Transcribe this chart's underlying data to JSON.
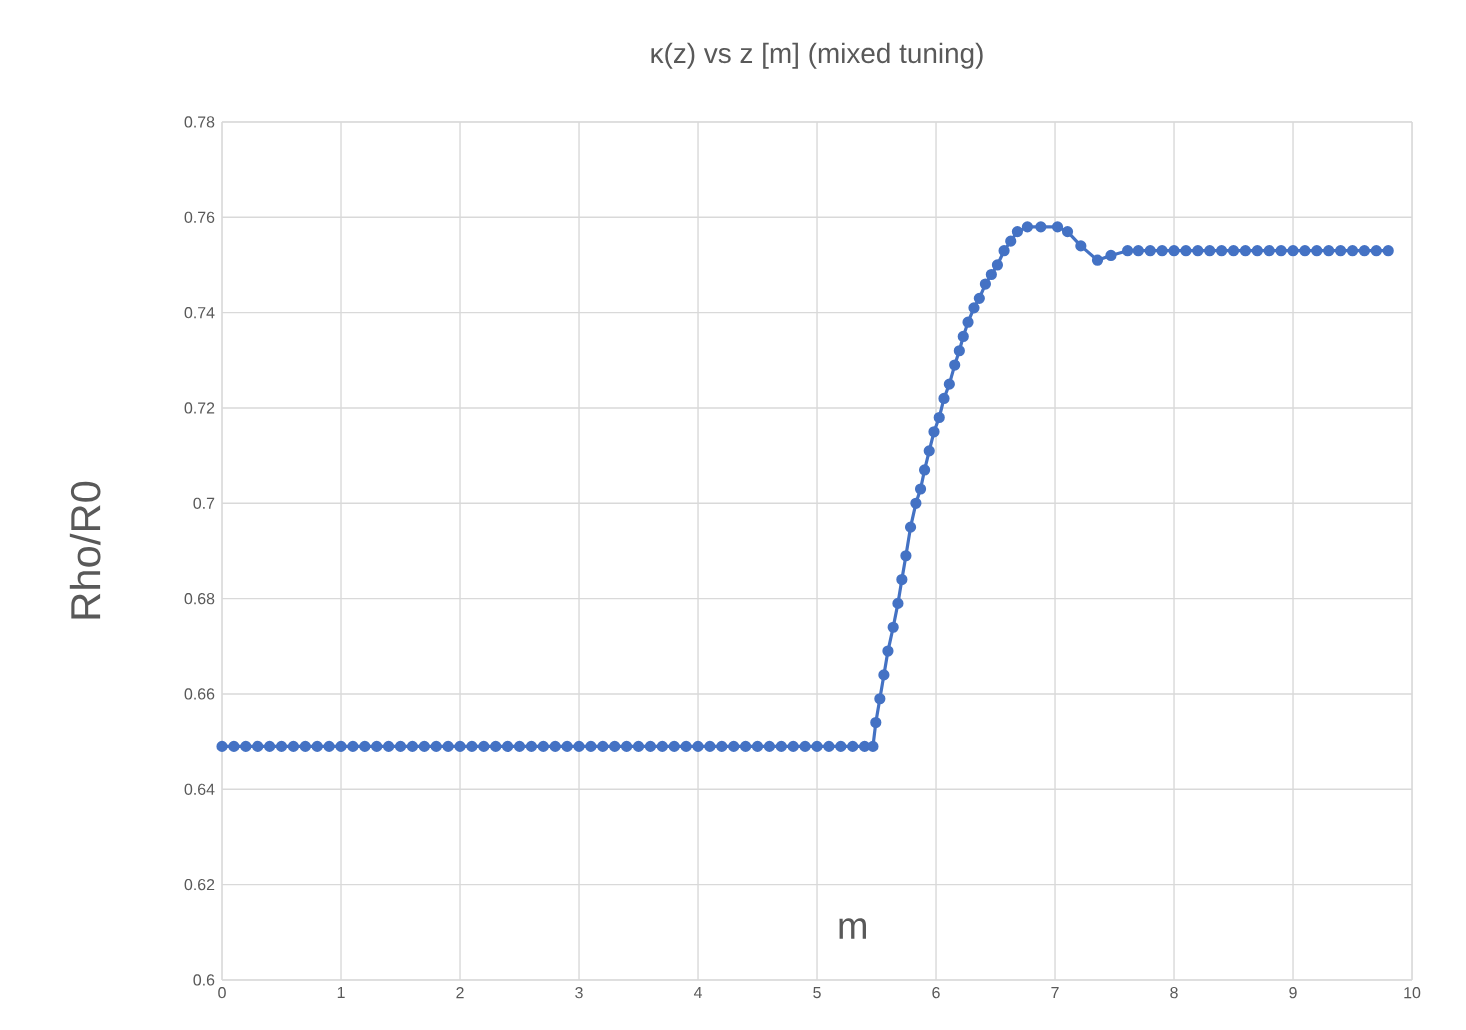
{
  "chart_data": {
    "type": "line",
    "title": "κ(z) vs z [m] (mixed tuning)",
    "xlabel": "m",
    "ylabel": "Rho/R0",
    "series": [
      {
        "color": "#4472c4",
        "x": [
          0,
          0.1,
          0.2,
          0.3,
          0.4,
          0.5,
          0.6,
          0.7,
          0.8,
          0.9,
          1.0,
          1.1,
          1.2,
          1.3,
          1.4,
          1.5,
          1.6,
          1.7,
          1.8,
          1.9,
          2.0,
          2.1,
          2.2,
          2.3,
          2.4,
          2.5,
          2.6,
          2.7,
          2.8,
          2.9,
          3.0,
          3.1,
          3.2,
          3.3,
          3.4,
          3.5,
          3.6,
          3.7,
          3.8,
          3.9,
          4.0,
          4.1,
          4.2,
          4.3,
          4.4,
          4.5,
          4.6,
          4.7,
          4.8,
          4.9,
          5.0,
          5.1,
          5.2,
          5.3,
          5.4,
          5.47,
          5.494,
          5.528,
          5.562,
          5.596,
          5.64,
          5.68,
          5.713,
          5.747,
          5.786,
          5.831,
          5.87,
          5.904,
          5.943,
          5.983,
          6.027,
          6.067,
          6.112,
          6.157,
          6.196,
          6.229,
          6.269,
          6.319,
          6.364,
          6.415,
          6.465,
          6.516,
          6.572,
          6.628,
          6.684,
          6.768,
          6.881,
          7.021,
          7.105,
          7.217,
          7.357,
          7.47,
          7.61,
          7.7,
          7.8,
          7.9,
          8.0,
          8.1,
          8.2,
          8.3,
          8.4,
          8.5,
          8.6,
          8.7,
          8.8,
          8.9,
          9.0,
          9.1,
          9.2,
          9.3,
          9.4,
          9.5,
          9.6,
          9.7,
          9.8
        ],
        "values": [
          0.649,
          0.649,
          0.649,
          0.649,
          0.649,
          0.649,
          0.649,
          0.649,
          0.649,
          0.649,
          0.649,
          0.649,
          0.649,
          0.649,
          0.649,
          0.649,
          0.649,
          0.649,
          0.649,
          0.649,
          0.649,
          0.649,
          0.649,
          0.649,
          0.649,
          0.649,
          0.649,
          0.649,
          0.649,
          0.649,
          0.649,
          0.649,
          0.649,
          0.649,
          0.649,
          0.649,
          0.649,
          0.649,
          0.649,
          0.649,
          0.649,
          0.649,
          0.649,
          0.649,
          0.649,
          0.649,
          0.649,
          0.649,
          0.649,
          0.649,
          0.649,
          0.649,
          0.649,
          0.649,
          0.649,
          0.649,
          0.654,
          0.659,
          0.664,
          0.669,
          0.674,
          0.679,
          0.684,
          0.689,
          0.695,
          0.7,
          0.703,
          0.707,
          0.711,
          0.715,
          0.718,
          0.722,
          0.725,
          0.729,
          0.732,
          0.735,
          0.738,
          0.741,
          0.743,
          0.746,
          0.748,
          0.75,
          0.753,
          0.755,
          0.757,
          0.758,
          0.758,
          0.758,
          0.757,
          0.754,
          0.751,
          0.752,
          0.753,
          0.753,
          0.753,
          0.753,
          0.753,
          0.753,
          0.753,
          0.753,
          0.753,
          0.753,
          0.753,
          0.753,
          0.753,
          0.753,
          0.753,
          0.753,
          0.753,
          0.753,
          0.753,
          0.753,
          0.753,
          0.753,
          0.753
        ]
      }
    ],
    "xlim": [
      0,
      10
    ],
    "ylim": [
      0.6,
      0.78
    ],
    "xticks": [
      0,
      1,
      2,
      3,
      4,
      5,
      6,
      7,
      8,
      9,
      10
    ],
    "yticks": [
      0.6,
      0.62,
      0.64,
      0.66,
      0.68,
      0.7,
      0.72,
      0.74,
      0.76,
      0.78
    ],
    "grid": true,
    "marker": "circle",
    "line_style": "solid"
  }
}
